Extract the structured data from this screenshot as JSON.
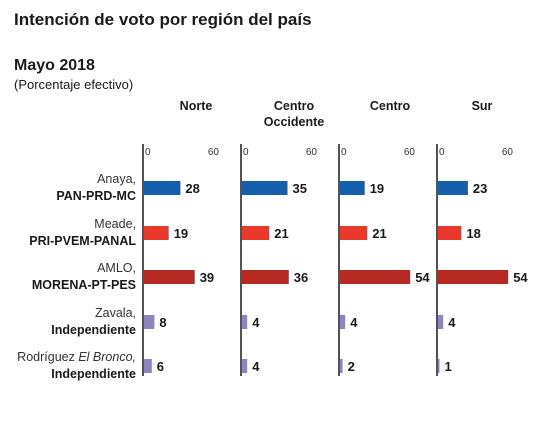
{
  "title": "Intención de voto por región del país",
  "subtitle": "Mayo 2018",
  "unit_label": "(Porcentaje efectivo)",
  "chart_data": {
    "type": "bar",
    "orientation": "horizontal",
    "xlim": [
      0,
      60
    ],
    "ticks": [
      "0",
      "60"
    ],
    "panels": [
      {
        "label_lines": [
          "Norte"
        ],
        "values": [
          28,
          19,
          39,
          8,
          6
        ]
      },
      {
        "label_lines": [
          "Centro",
          "Occidente"
        ],
        "values": [
          35,
          21,
          36,
          4,
          4
        ]
      },
      {
        "label_lines": [
          "Centro"
        ],
        "values": [
          19,
          21,
          54,
          4,
          2
        ]
      },
      {
        "label_lines": [
          "Sur"
        ],
        "values": [
          23,
          18,
          54,
          4,
          1
        ]
      }
    ],
    "categories": [
      {
        "name": "Anaya,",
        "name_italic": "",
        "party": "PAN-PRD-MC",
        "color": "#1560ad"
      },
      {
        "name": "Meade,",
        "name_italic": "",
        "party": "PRI-PVEM-PANAL",
        "color": "#e8392a"
      },
      {
        "name": "AMLO,",
        "name_italic": "",
        "party": "MORENA-PT-PES",
        "color": "#b72a24"
      },
      {
        "name": "Zavala,",
        "name_italic": "",
        "party": "Independiente",
        "color": "#8b86bf"
      },
      {
        "name": "Rodríguez ",
        "name_italic": "El Bronco,",
        "party": "Independiente",
        "color": "#8b86bf"
      }
    ],
    "grid": false,
    "legend": "none"
  }
}
